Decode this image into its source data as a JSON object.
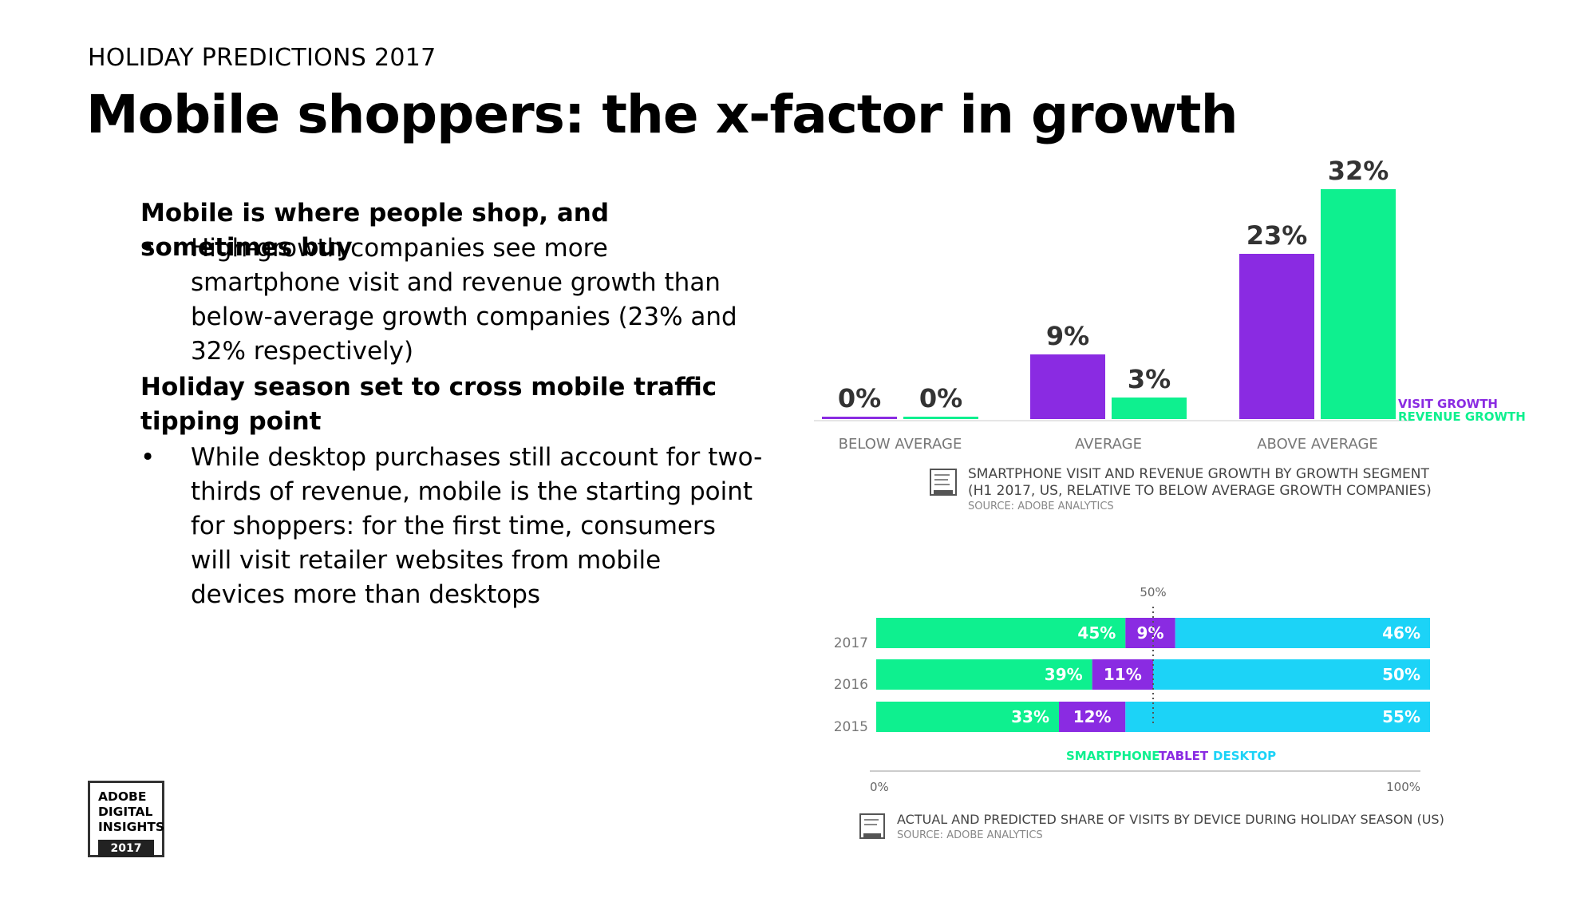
{
  "slide": {
    "kicker": "HOLIDAY PREDICTIONS 2017",
    "title": "Mobile shoppers: the x-factor in growth"
  },
  "sections": [
    {
      "heading": "Mobile is where people shop, and sometimes buy",
      "bullet": "High-growth companies see more smartphone visit and revenue growth than below-average growth companies (23% and 32% respectively)"
    },
    {
      "heading": "Holiday season set to cross mobile traffic tipping point",
      "bullet": "While desktop purchases still account for two-thirds of revenue, mobile is the starting point for shoppers: for the first time, consumers will visit retailer websites from mobile devices more than desktops"
    }
  ],
  "bullet_char": "•",
  "logo": {
    "lines": [
      "ADOBE",
      "DIGITAL",
      "INSIGHTS"
    ],
    "year": "2017"
  },
  "colors": {
    "visit": "#8a2be2",
    "revenue": "#0ef08f",
    "smartphone": "#0ef08f",
    "tablet": "#8a2be2",
    "desktop": "#1cd3f7"
  },
  "chart_data": [
    {
      "type": "bar",
      "categories": [
        "BELOW AVERAGE",
        "AVERAGE",
        "ABOVE AVERAGE"
      ],
      "series": [
        {
          "name": "VISIT GROWTH",
          "values": [
            0,
            9,
            23
          ],
          "labels": [
            "0%",
            "9%",
            "23%"
          ]
        },
        {
          "name": "REVENUE GROWTH",
          "values": [
            0,
            3,
            32
          ],
          "labels": [
            "0%",
            "3%",
            "32%"
          ]
        }
      ],
      "ylim": [
        0,
        32
      ],
      "caption": {
        "line1": "SMARTPHONE VISIT AND REVENUE GROWTH BY GROWTH SEGMENT",
        "line2": "(H1 2017, US, RELATIVE TO BELOW AVERAGE GROWTH COMPANIES)",
        "source": "SOURCE: ADOBE ANALYTICS"
      }
    },
    {
      "type": "bar",
      "orientation": "horizontal-stacked",
      "categories": [
        "2017",
        "2016",
        "2015"
      ],
      "series": [
        {
          "name": "SMARTPHONE",
          "values": [
            45,
            39,
            33
          ],
          "labels": [
            "45%",
            "39%",
            "33%"
          ]
        },
        {
          "name": "TABLET",
          "values": [
            9,
            11,
            12
          ],
          "labels": [
            "9%",
            "11%",
            "12%"
          ]
        },
        {
          "name": "DESKTOP",
          "values": [
            46,
            50,
            55
          ],
          "labels": [
            "46%",
            "50%",
            "55%"
          ]
        }
      ],
      "xlim": [
        0,
        100
      ],
      "axis_labels": {
        "min": "0%",
        "max": "100%",
        "reference": "50%"
      },
      "reference_line": 50,
      "caption": {
        "line1": "ACTUAL AND PREDICTED SHARE OF VISITS BY DEVICE DURING HOLIDAY SEASON (US)",
        "source": "SOURCE: ADOBE ANALYTICS"
      }
    }
  ]
}
